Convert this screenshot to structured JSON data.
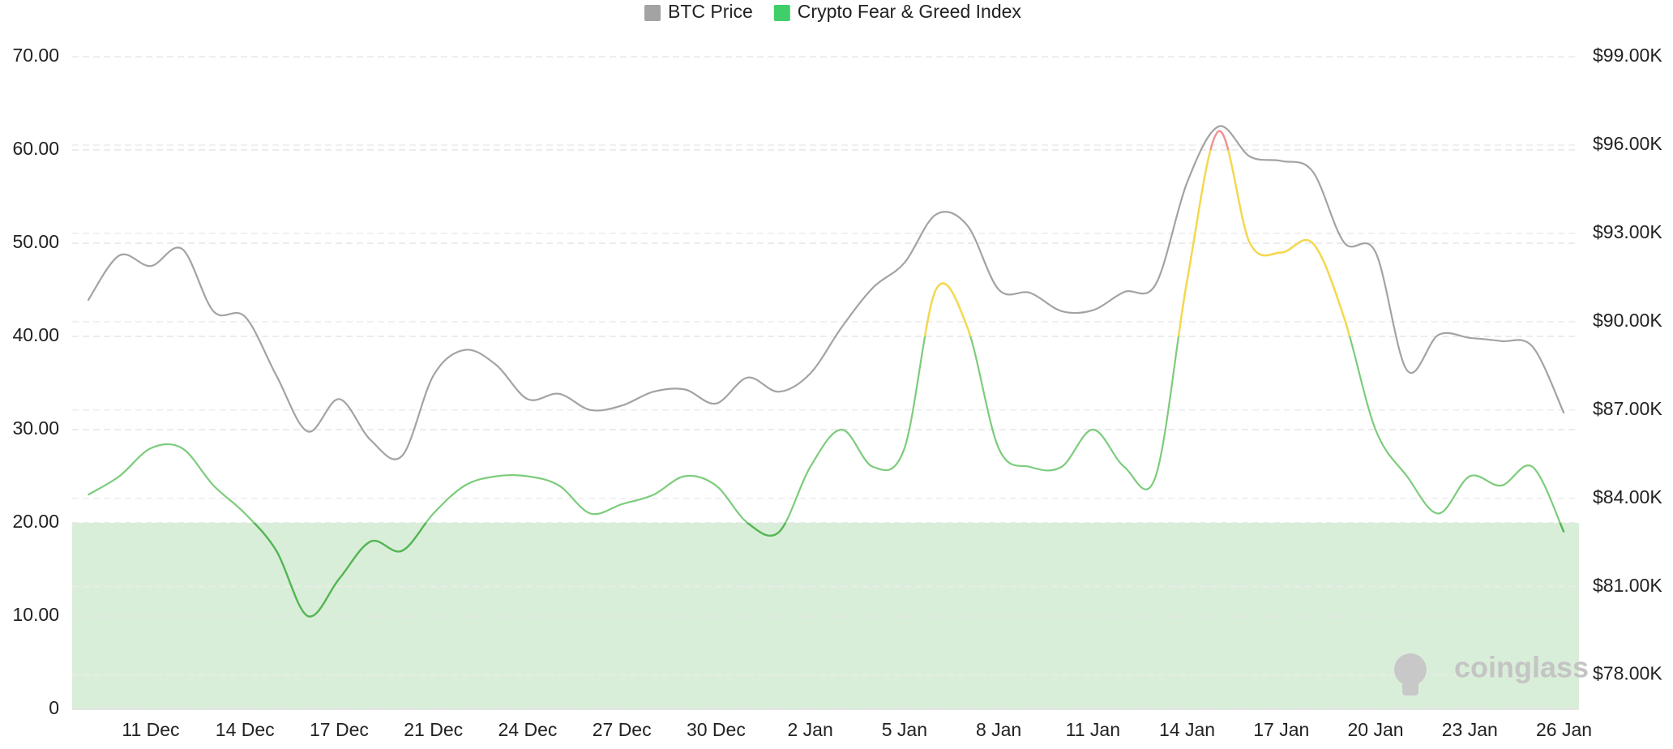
{
  "chart_data": {
    "type": "line",
    "categories": [
      null,
      null,
      "11 Dec",
      null,
      null,
      "14 Dec",
      null,
      null,
      "17 Dec",
      null,
      null,
      "21 Dec",
      null,
      null,
      "24 Dec",
      null,
      null,
      "27 Dec",
      null,
      null,
      "30 Dec",
      null,
      null,
      "2 Jan",
      null,
      null,
      "5 Jan",
      null,
      null,
      "8 Jan",
      null,
      null,
      "11 Jan",
      null,
      null,
      "14 Jan",
      null,
      null,
      "17 Jan",
      null,
      null,
      "20 Jan",
      null,
      null,
      "23 Jan",
      null,
      null,
      "26 Jan"
    ],
    "series": [
      {
        "name": "BTC Price",
        "color": "#a3a3a3",
        "axis": "y2",
        "values": [
          90720,
          92250,
          91890,
          92470,
          90350,
          90170,
          88170,
          86270,
          87370,
          85980,
          85440,
          88170,
          89040,
          88530,
          87370,
          87550,
          87000,
          87150,
          87620,
          87700,
          87220,
          88100,
          87620,
          88240,
          89810,
          91160,
          92000,
          93640,
          93270,
          91090,
          90980,
          90360,
          90390,
          91010,
          91270,
          94730,
          96630,
          95610,
          95460,
          95100,
          92690,
          92360,
          88350,
          89550,
          89450,
          89340,
          89150,
          86890
        ]
      },
      {
        "name": "Crypto Fear & Greed Index",
        "color": "#3fcf6a",
        "values": [
          23,
          25,
          28,
          28,
          24,
          21,
          17,
          10,
          14,
          18,
          17,
          21,
          24,
          25,
          25,
          24,
          21,
          22,
          23,
          25,
          24,
          20,
          19,
          26,
          30,
          26,
          28,
          45,
          41,
          28,
          26,
          26,
          30,
          26,
          25,
          46,
          62,
          50,
          49,
          50,
          42,
          30,
          25,
          21,
          25,
          24,
          26,
          19
        ]
      }
    ],
    "line_color": "#7ccc7c",
    "line_color_bands": [
      {
        "from": 0,
        "to": 20,
        "color": "#55b655"
      },
      {
        "from": 40,
        "to": 60,
        "color": "#f7d84c"
      },
      {
        "from": 60,
        "to": 70,
        "color": "#f29090"
      }
    ],
    "zones": [
      {
        "from": 0,
        "to": 20,
        "color": "#d9eed9"
      }
    ],
    "ylim": [
      0,
      70
    ],
    "yticks": [
      0,
      {
        "value": 10,
        "label": "10.00"
      },
      {
        "value": 20,
        "label": "20.00"
      },
      {
        "value": 30,
        "label": "30.00"
      },
      {
        "value": 40,
        "label": "40.00"
      },
      {
        "value": 50,
        "label": "50.00"
      },
      {
        "value": 60,
        "label": "60.00"
      },
      {
        "value": 70,
        "label": "70.00"
      }
    ],
    "y2lim": [
      76833,
      99000
    ],
    "y2ticks": [
      {
        "value": 78000,
        "label": "$78.00K"
      },
      {
        "value": 81000,
        "label": "$81.00K"
      },
      {
        "value": 84000,
        "label": "$84.00K"
      },
      {
        "value": 87000,
        "label": "$87.00K"
      },
      {
        "value": 90000,
        "label": "$90.00K"
      },
      {
        "value": 93000,
        "label": "$93.00K"
      },
      {
        "value": 96000,
        "label": "$96.00K"
      },
      {
        "value": 99000,
        "label": "$99.00K"
      }
    ],
    "grid": true,
    "legend": "top",
    "watermark": "coinglass"
  }
}
